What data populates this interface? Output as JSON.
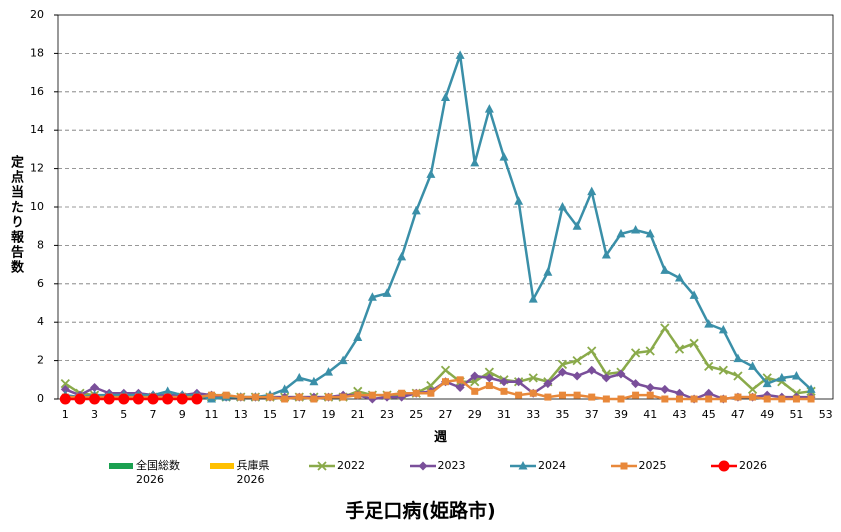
{
  "chart_data": {
    "type": "line",
    "title": "手足口病(姫路市)",
    "x_label": "週",
    "y_label": "定点当たり報告数",
    "categories": [
      "1",
      null,
      "3",
      null,
      "5",
      null,
      "7",
      null,
      "9",
      null,
      "11",
      null,
      "13",
      null,
      "15",
      null,
      "17",
      null,
      "19",
      null,
      "21",
      null,
      "23",
      null,
      "25",
      null,
      "27",
      null,
      "29",
      null,
      "31",
      null,
      "33",
      null,
      "35",
      null,
      "37",
      null,
      "39",
      null,
      "41",
      null,
      "43",
      null,
      "45",
      null,
      "47",
      null,
      "49",
      null,
      "51",
      null,
      "53"
    ],
    "ylim": [
      0,
      20
    ],
    "yticks": [
      0,
      2,
      4,
      6,
      8,
      10,
      12,
      14,
      16,
      18,
      20
    ],
    "grid": true,
    "series": [
      {
        "name": "全国総数\n2026",
        "type": "bar",
        "color": "#1aa050",
        "values": [
          0,
          0,
          0,
          0,
          0,
          0,
          0,
          0,
          0,
          0,
          null,
          null,
          null,
          null,
          null,
          null,
          null,
          null,
          null,
          null,
          null,
          null,
          null,
          null,
          null,
          null,
          null,
          null,
          null,
          null,
          null,
          null,
          null,
          null,
          null,
          null,
          null,
          null,
          null,
          null,
          null,
          null,
          null,
          null,
          null,
          null,
          null,
          null,
          null,
          null,
          null,
          null,
          null
        ]
      },
      {
        "name": "兵庫県\n2026",
        "type": "bar",
        "color": "#ffc000",
        "values": [
          0,
          0,
          0,
          0,
          0,
          0,
          0,
          0,
          0,
          0,
          null,
          null,
          null,
          null,
          null,
          null,
          null,
          null,
          null,
          null,
          null,
          null,
          null,
          null,
          null,
          null,
          null,
          null,
          null,
          null,
          null,
          null,
          null,
          null,
          null,
          null,
          null,
          null,
          null,
          null,
          null,
          null,
          null,
          null,
          null,
          null,
          null,
          null,
          null,
          null,
          null,
          null,
          null
        ]
      },
      {
        "name": "2022",
        "type": "line",
        "marker": "cross",
        "color": "#8aaa4a",
        "values": [
          0.8,
          0.3,
          0.2,
          0.1,
          0.1,
          0.1,
          0.1,
          0.1,
          0.1,
          0.1,
          0.1,
          0.1,
          0.1,
          0.1,
          0.1,
          0.1,
          0.1,
          0.1,
          0.1,
          0.1,
          0.4,
          0.2,
          0.2,
          0.2,
          0.3,
          0.7,
          1.5,
          0.9,
          0.9,
          1.4,
          1.0,
          0.9,
          1.1,
          0.9,
          1.8,
          2.0,
          2.5,
          1.3,
          1.4,
          2.4,
          2.5,
          3.7,
          2.6,
          2.9,
          1.7,
          1.5,
          1.2,
          0.5,
          1.1,
          0.9,
          0.3,
          0.4,
          null
        ]
      },
      {
        "name": "2023",
        "type": "line",
        "marker": "diamond",
        "color": "#7a4f9a",
        "values": [
          0.5,
          0.2,
          0.6,
          0.3,
          0.3,
          0.3,
          0.2,
          0.2,
          0.2,
          0.3,
          0.2,
          0.1,
          0.1,
          0.1,
          0.1,
          0.1,
          0.1,
          0.1,
          0.1,
          0.2,
          0.2,
          0.0,
          0.1,
          0.1,
          0.3,
          0.4,
          0.9,
          0.6,
          1.2,
          1.1,
          0.9,
          0.9,
          0.3,
          0.8,
          1.4,
          1.2,
          1.5,
          1.1,
          1.3,
          0.8,
          0.6,
          0.5,
          0.3,
          0.0,
          0.3,
          0.0,
          0.1,
          0.1,
          0.2,
          0.1,
          0.1,
          0.1,
          null
        ]
      },
      {
        "name": "2024",
        "type": "line",
        "marker": "triangle",
        "color": "#3a8fa8",
        "values": [
          0.2,
          0.1,
          0.2,
          0.2,
          0.2,
          0.2,
          0.2,
          0.4,
          0.2,
          0.2,
          0.0,
          0.1,
          0.1,
          0.1,
          0.2,
          0.5,
          1.1,
          0.9,
          1.4,
          2.0,
          3.2,
          5.3,
          5.5,
          7.4,
          9.8,
          11.7,
          15.7,
          17.9,
          12.3,
          15.1,
          12.6,
          10.3,
          5.2,
          6.6,
          10.0,
          9.0,
          10.8,
          7.5,
          8.6,
          8.8,
          8.6,
          6.7,
          6.3,
          5.4,
          3.9,
          3.6,
          2.1,
          1.7,
          0.8,
          1.1,
          1.2,
          0.5,
          null
        ]
      },
      {
        "name": "2025",
        "type": "line",
        "marker": "square",
        "color": "#e8883a",
        "values": [
          0.1,
          0.1,
          0.1,
          0.1,
          0.1,
          0.1,
          0.1,
          0.1,
          0.1,
          0.1,
          0.2,
          0.2,
          0.1,
          0.1,
          0.1,
          0.0,
          0.1,
          0.0,
          0.1,
          0.1,
          0.2,
          0.2,
          0.2,
          0.3,
          0.3,
          0.3,
          0.9,
          1.0,
          0.4,
          0.7,
          0.4,
          0.2,
          0.3,
          0.1,
          0.2,
          0.2,
          0.1,
          0.0,
          0.0,
          0.2,
          0.2,
          0.0,
          0.0,
          0.0,
          0.0,
          0.0,
          0.1,
          0.1,
          0.0,
          0.0,
          0.0,
          0.0,
          null
        ]
      },
      {
        "name": "2026",
        "type": "line",
        "marker": "circle",
        "color": "#ff0000",
        "values": [
          0,
          0,
          0,
          0,
          0,
          0,
          0,
          0,
          0,
          0,
          null,
          null,
          null,
          null,
          null,
          null,
          null,
          null,
          null,
          null,
          null,
          null,
          null,
          null,
          null,
          null,
          null,
          null,
          null,
          null,
          null,
          null,
          null,
          null,
          null,
          null,
          null,
          null,
          null,
          null,
          null,
          null,
          null,
          null,
          null,
          null,
          null,
          null,
          null,
          null,
          null,
          null,
          null
        ]
      }
    ]
  }
}
